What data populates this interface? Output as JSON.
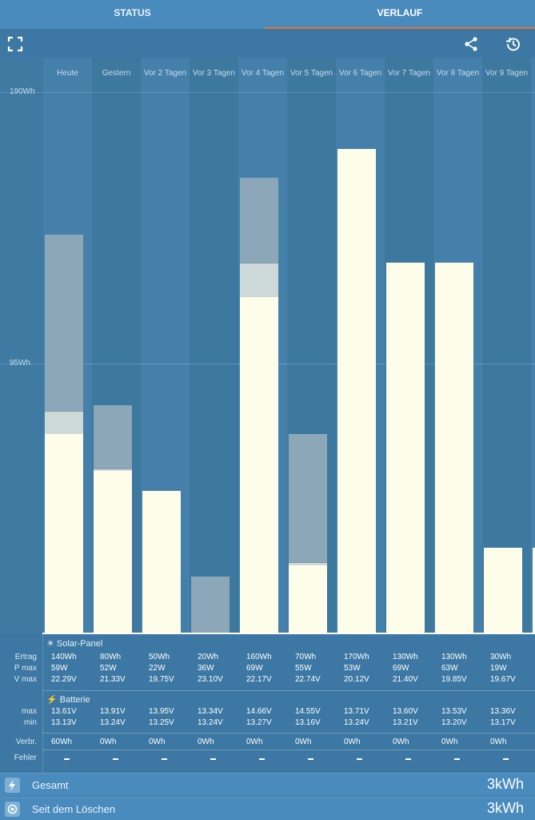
{
  "tabs": [
    {
      "label": "STATUS"
    },
    {
      "label": "VERLAUF"
    }
  ],
  "icons": {
    "fullscreen": "fullscreen-icon",
    "share": "share-icon",
    "history": "history-icon",
    "sun": "sun-icon",
    "bolt": "bolt-icon"
  },
  "colors": {
    "accent": "#e8743b",
    "bar_main": "#fefde9",
    "bar_mid": "#cdd9d9",
    "bar_top": "#8ca8b8"
  },
  "chart_data": {
    "type": "bar",
    "categories": [
      "Heute",
      "Gestern",
      "Vor 2 Tagen",
      "Vor 3 Tagen",
      "Vor 4 Tagen",
      "Vor 5 Tagen",
      "Vor 6 Tagen",
      "Vor 7 Tagen",
      "Vor 8 Tagen",
      "Vor 9 Tagen",
      "Vo"
    ],
    "gridlines": [
      {
        "label": "190Wh",
        "value": 190
      },
      {
        "label": "95Wh",
        "value": 95
      }
    ],
    "ylim": [
      0,
      190
    ],
    "series": [
      {
        "values": [
          70,
          57,
          50,
          0,
          118,
          24,
          170,
          130,
          130,
          30,
          30
        ]
      },
      {
        "values": [
          8,
          1,
          0,
          0,
          12,
          1,
          0,
          0,
          0,
          0,
          0
        ]
      },
      {
        "values": [
          62,
          22,
          0,
          20,
          30,
          45,
          0,
          0,
          0,
          0,
          0
        ]
      }
    ]
  },
  "table": {
    "solar_header": "Solar-Panel",
    "battery_header": "Batterie",
    "row_labels": {
      "ertrag": "Ertrag",
      "pmax": "P max",
      "vmax": "V max",
      "max": "max",
      "min": "min",
      "verbr": "Verbr.",
      "fehler": "Fehler"
    },
    "columns": [
      {
        "ertrag": "140Wh",
        "pmax": "59W",
        "vmax": "22.29V",
        "max": "13.61V",
        "min": "13.13V",
        "verbr": "60Wh"
      },
      {
        "ertrag": "80Wh",
        "pmax": "52W",
        "vmax": "21.33V",
        "max": "13.91V",
        "min": "13.24V",
        "verbr": "0Wh"
      },
      {
        "ertrag": "50Wh",
        "pmax": "22W",
        "vmax": "19.75V",
        "max": "13.95V",
        "min": "13.25V",
        "verbr": "0Wh"
      },
      {
        "ertrag": "20Wh",
        "pmax": "36W",
        "vmax": "23.10V",
        "max": "13.34V",
        "min": "13.24V",
        "verbr": "0Wh"
      },
      {
        "ertrag": "160Wh",
        "pmax": "69W",
        "vmax": "22.17V",
        "max": "14.66V",
        "min": "13.27V",
        "verbr": "0Wh"
      },
      {
        "ertrag": "70Wh",
        "pmax": "55W",
        "vmax": "22.74V",
        "max": "14.55V",
        "min": "13.16V",
        "verbr": "0Wh"
      },
      {
        "ertrag": "170Wh",
        "pmax": "53W",
        "vmax": "20.12V",
        "max": "13.71V",
        "min": "13.24V",
        "verbr": "0Wh"
      },
      {
        "ertrag": "130Wh",
        "pmax": "69W",
        "vmax": "21.40V",
        "max": "13.60V",
        "min": "13.21V",
        "verbr": "0Wh"
      },
      {
        "ertrag": "130Wh",
        "pmax": "63W",
        "vmax": "19.85V",
        "max": "13.53V",
        "min": "13.20V",
        "verbr": "0Wh"
      },
      {
        "ertrag": "30Wh",
        "pmax": "19W",
        "vmax": "19.67V",
        "max": "13.36V",
        "min": "13.17V",
        "verbr": "0Wh"
      }
    ]
  },
  "footer": {
    "total_label": "Gesamt",
    "total_value": "3kWh",
    "since_reset_label": "Seit dem Löschen",
    "since_reset_value": "3kWh"
  }
}
